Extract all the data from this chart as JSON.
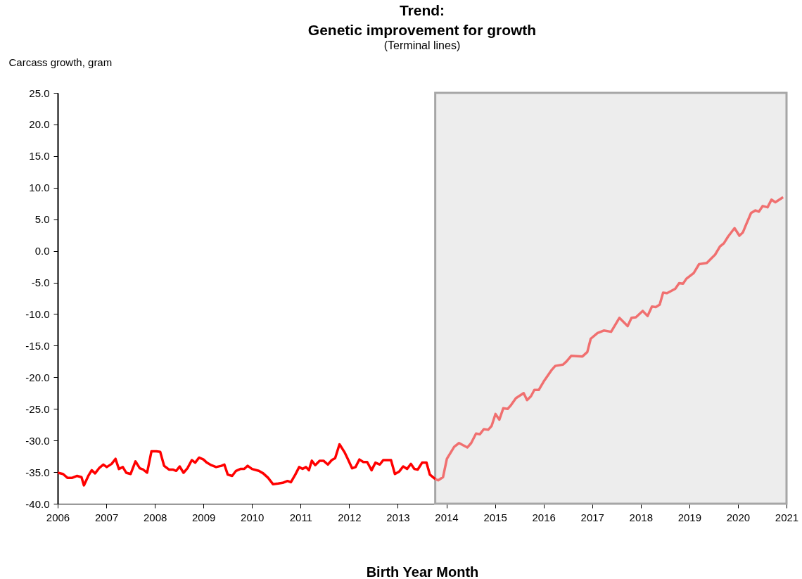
{
  "chart_data": {
    "type": "line",
    "title": [
      "Trend:",
      "Genetic improvement for growth"
    ],
    "subtitle": "(Terminal lines)",
    "xlabel": "Birth Year Month",
    "ylabel": "Carcass growth, gram",
    "series": [
      {
        "color": "#ff0000",
        "x": [
          2006.0,
          2006.11,
          2006.2,
          2006.3,
          2006.4,
          2006.49,
          2006.54,
          2006.63,
          2006.7,
          2006.77,
          2006.86,
          2006.94,
          2007.01,
          2007.11,
          2007.19,
          2007.26,
          2007.34,
          2007.41,
          2007.5,
          2007.6,
          2007.69,
          2007.76,
          2007.84,
          2007.93,
          2008.03,
          2008.11,
          2008.19,
          2008.29,
          2008.37,
          2008.44,
          2008.51,
          2008.59,
          2008.67,
          2008.76,
          2008.83,
          2008.91,
          2009.0,
          2009.07,
          2009.16,
          2009.26,
          2009.37,
          2009.43,
          2009.5,
          2009.59,
          2009.67,
          2009.76,
          2009.84,
          2009.91,
          2010.0,
          2010.14,
          2010.23,
          2010.33,
          2010.43,
          2010.54,
          2010.63,
          2010.73,
          2010.8,
          2010.89,
          2010.97,
          2011.04,
          2011.11,
          2011.17,
          2011.23,
          2011.3,
          2011.39,
          2011.47,
          2011.56,
          2011.64,
          2011.71,
          2011.8,
          2011.9,
          2011.97,
          2012.06,
          2012.13,
          2012.21,
          2012.29,
          2012.37,
          2012.46,
          2012.54,
          2012.63,
          2012.7,
          2012.79,
          2012.86,
          2012.94,
          2013.03,
          2013.11,
          2013.19,
          2013.27,
          2013.34,
          2013.41,
          2013.5,
          2013.59,
          2013.66,
          2013.77
        ],
        "values": [
          -35.1,
          -35.3,
          -35.9,
          -35.9,
          -35.6,
          -35.8,
          -37.1,
          -35.6,
          -34.7,
          -35.2,
          -34.3,
          -33.8,
          -34.2,
          -33.7,
          -32.9,
          -34.5,
          -34.2,
          -35.1,
          -35.3,
          -33.3,
          -34.4,
          -34.6,
          -35.1,
          -31.7,
          -31.7,
          -31.8,
          -34.0,
          -34.6,
          -34.6,
          -34.8,
          -34.1,
          -35.1,
          -34.4,
          -33.1,
          -33.5,
          -32.7,
          -33.0,
          -33.5,
          -33.9,
          -34.2,
          -34.0,
          -33.8,
          -35.4,
          -35.6,
          -34.8,
          -34.5,
          -34.5,
          -34.0,
          -34.5,
          -34.8,
          -35.2,
          -35.9,
          -36.9,
          -36.8,
          -36.7,
          -36.4,
          -36.6,
          -35.4,
          -34.2,
          -34.5,
          -34.2,
          -34.7,
          -33.2,
          -33.9,
          -33.2,
          -33.2,
          -33.8,
          -33.1,
          -32.8,
          -30.6,
          -31.8,
          -32.9,
          -34.4,
          -34.2,
          -33.0,
          -33.4,
          -33.4,
          -34.7,
          -33.5,
          -33.8,
          -33.1,
          -33.1,
          -33.1,
          -35.3,
          -34.9,
          -34.1,
          -34.5,
          -33.7,
          -34.5,
          -34.6,
          -33.5,
          -33.5,
          -35.4,
          -36.1
        ]
      },
      {
        "color": "#f07070",
        "x": [
          2013.77,
          2013.83,
          2013.93,
          2014.01,
          2014.16,
          2014.26,
          2014.43,
          2014.51,
          2014.61,
          2014.69,
          2014.77,
          2014.86,
          2014.93,
          2015.01,
          2015.09,
          2015.17,
          2015.26,
          2015.33,
          2015.43,
          2015.59,
          2015.66,
          2015.74,
          2015.81,
          2015.9,
          2016.0,
          2016.16,
          2016.24,
          2016.4,
          2016.47,
          2016.57,
          2016.8,
          2016.9,
          2016.97,
          2017.11,
          2017.24,
          2017.39,
          2017.56,
          2017.73,
          2017.81,
          2017.9,
          2018.04,
          2018.14,
          2018.23,
          2018.31,
          2018.39,
          2018.46,
          2018.54,
          2018.71,
          2018.79,
          2018.87,
          2018.94,
          2019.09,
          2019.2,
          2019.36,
          2019.53,
          2019.63,
          2019.71,
          2019.8,
          2019.93,
          2020.03,
          2020.1,
          2020.17,
          2020.27,
          2020.36,
          2020.43,
          2020.51,
          2020.61,
          2020.69,
          2020.77,
          2020.93
        ],
        "values": [
          -36.1,
          -36.3,
          -35.8,
          -32.9,
          -31.0,
          -30.4,
          -31.1,
          -30.4,
          -28.9,
          -29.0,
          -28.2,
          -28.3,
          -27.7,
          -25.8,
          -26.7,
          -24.9,
          -25.0,
          -24.4,
          -23.3,
          -22.5,
          -23.6,
          -23.0,
          -22.0,
          -22.0,
          -20.7,
          -18.9,
          -18.2,
          -18.0,
          -17.5,
          -16.6,
          -16.7,
          -16.0,
          -13.9,
          -13.0,
          -12.6,
          -12.8,
          -10.6,
          -11.9,
          -10.6,
          -10.5,
          -9.5,
          -10.3,
          -8.8,
          -8.9,
          -8.5,
          -6.6,
          -6.7,
          -6.0,
          -5.1,
          -5.2,
          -4.4,
          -3.5,
          -2.1,
          -1.9,
          -0.6,
          0.7,
          1.2,
          2.3,
          3.6,
          2.4,
          2.9,
          4.2,
          6.0,
          6.4,
          6.2,
          7.1,
          6.9,
          8.1,
          7.7,
          8.5
        ]
      }
    ],
    "xlim": [
      2006,
      2021
    ],
    "xticks": [
      2006,
      2007,
      2008,
      2009,
      2010,
      2011,
      2012,
      2013,
      2014,
      2015,
      2016,
      2017,
      2018,
      2019,
      2020,
      2021
    ],
    "ylim": [
      -40,
      25
    ],
    "yticks": [
      {
        "value": 25,
        "label": "25.0"
      },
      {
        "value": 20,
        "label": "20.0"
      },
      {
        "value": 15,
        "label": "15.0"
      },
      {
        "value": 10,
        "label": "10.0"
      },
      {
        "value": 5,
        "label": "5.0"
      },
      {
        "value": 0,
        "label": "0.0"
      },
      {
        "value": -5,
        "label": "-5.0"
      },
      {
        "value": -10,
        "label": "-10.0"
      },
      {
        "value": -15,
        "label": "-15.0"
      },
      {
        "value": -20,
        "label": "-20.0"
      },
      {
        "value": -25,
        "label": "-25.0"
      },
      {
        "value": -30,
        "label": "-30.0"
      },
      {
        "value": -35,
        "label": "-35.0"
      },
      {
        "value": -40,
        "label": "-40.0"
      }
    ],
    "bands": [
      {
        "axis": "x",
        "from": 2013.77,
        "to": 2021,
        "color": "#ededed"
      }
    ],
    "grid": false,
    "legend": false,
    "marker": "none",
    "line_style": "solid"
  }
}
